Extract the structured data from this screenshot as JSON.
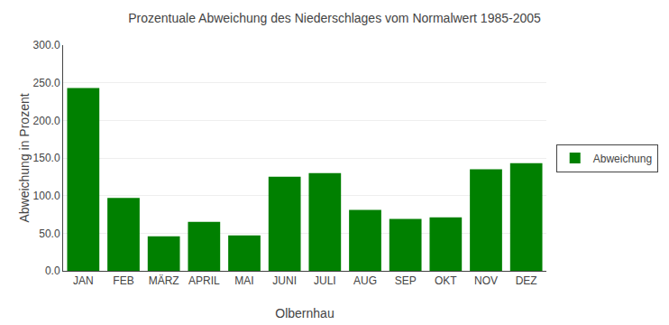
{
  "chart_data": {
    "type": "bar",
    "title": "Prozentuale Abweichung des Niederschlages vom Normalwert 1985-2005",
    "xlabel": "Olbernhau",
    "ylabel": "Abweichung in Prozent",
    "categories": [
      "JAN",
      "FEB",
      "MÄRZ",
      "APRIL",
      "MAI",
      "JUNI",
      "JULI",
      "AUG",
      "SEP",
      "OKT",
      "NOV",
      "DEZ"
    ],
    "series": [
      {
        "name": "Abweichung",
        "color": "#008000",
        "values": [
          243.0,
          97.0,
          46.0,
          65.0,
          47.0,
          125.0,
          130.0,
          81.0,
          69.0,
          71.0,
          135.0,
          143.0
        ]
      }
    ],
    "ylim": [
      0,
      300
    ],
    "yticks": [
      {
        "value": 0,
        "label": "0.0"
      },
      {
        "value": 50,
        "label": "50.0"
      },
      {
        "value": 100,
        "label": "100.0"
      },
      {
        "value": 150,
        "label": "150.0"
      },
      {
        "value": 200,
        "label": "200.0"
      },
      {
        "value": 250,
        "label": "250.0"
      },
      {
        "value": 300,
        "label": "300.0"
      }
    ],
    "grid": true,
    "legend": "right"
  }
}
